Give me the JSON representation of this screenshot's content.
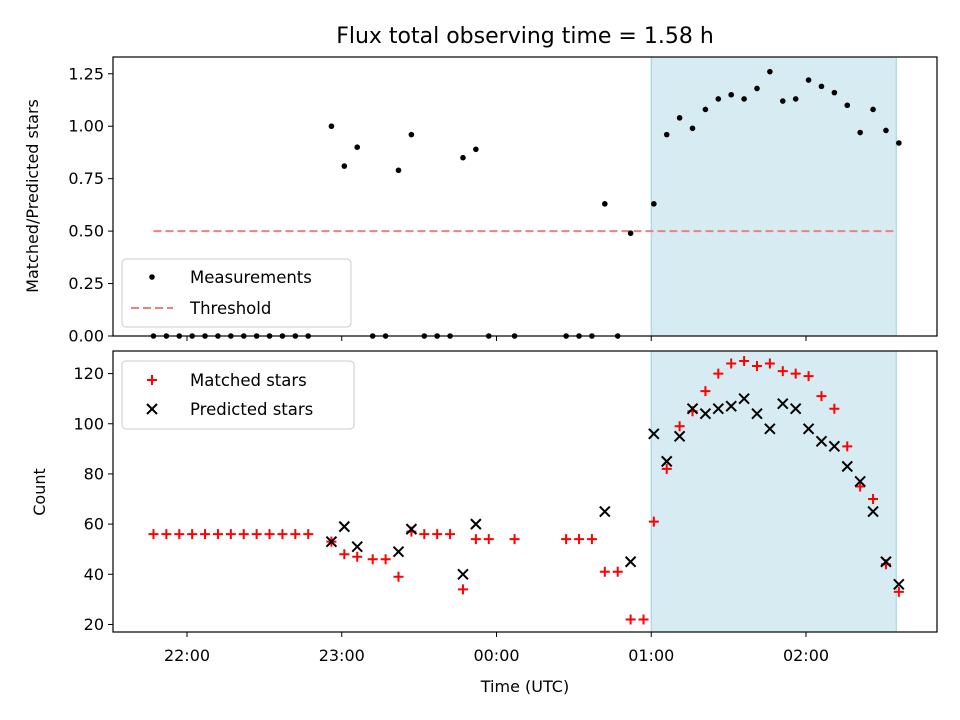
{
  "chart_data": [
    {
      "panel": "top",
      "type": "scatter",
      "title": "Flux total observing time = 1.58 h",
      "ylabel": "Matched/Predicted stars",
      "ylim": [
        0,
        1.33
      ],
      "yticks": [
        0.0,
        0.25,
        0.5,
        0.75,
        1.0,
        1.25
      ],
      "ytick_labels": [
        "0.00",
        "0.25",
        "0.50",
        "0.75",
        "1.00",
        "1.25"
      ],
      "legend": {
        "placement": "lower-left",
        "entries": [
          "Measurements",
          "Threshold"
        ]
      },
      "highlight_span": [
        "01:00",
        "02:35"
      ],
      "threshold": {
        "name": "Threshold",
        "value": 0.5,
        "x_start": "21:47",
        "x_end": "02:35",
        "color": "#f08080"
      },
      "series": [
        {
          "name": "Measurements",
          "color": "#000000",
          "points": [
            [
              "21:47",
              0.0
            ],
            [
              "21:52",
              0.0
            ],
            [
              "21:57",
              0.0
            ],
            [
              "22:02",
              0.0
            ],
            [
              "22:07",
              0.0
            ],
            [
              "22:12",
              0.0
            ],
            [
              "22:17",
              0.0
            ],
            [
              "22:22",
              0.0
            ],
            [
              "22:27",
              0.0
            ],
            [
              "22:32",
              0.0
            ],
            [
              "22:37",
              0.0
            ],
            [
              "22:42",
              0.0
            ],
            [
              "22:47",
              0.0
            ],
            [
              "22:56",
              1.0
            ],
            [
              "23:01",
              0.81
            ],
            [
              "23:06",
              0.9
            ],
            [
              "23:12",
              0.0
            ],
            [
              "23:17",
              0.0
            ],
            [
              "23:22",
              0.79
            ],
            [
              "23:27",
              0.96
            ],
            [
              "23:32",
              0.0
            ],
            [
              "23:37",
              0.0
            ],
            [
              "23:42",
              0.0
            ],
            [
              "23:47",
              0.85
            ],
            [
              "23:52",
              0.89
            ],
            [
              "23:57",
              0.0
            ],
            [
              "00:07",
              0.0
            ],
            [
              "00:27",
              0.0
            ],
            [
              "00:32",
              0.0
            ],
            [
              "00:37",
              0.0
            ],
            [
              "00:42",
              0.63
            ],
            [
              "00:47",
              0.0
            ],
            [
              "00:52",
              0.49
            ],
            [
              "01:01",
              0.63
            ],
            [
              "01:06",
              0.96
            ],
            [
              "01:11",
              1.04
            ],
            [
              "01:16",
              0.99
            ],
            [
              "01:21",
              1.08
            ],
            [
              "01:26",
              1.13
            ],
            [
              "01:31",
              1.15
            ],
            [
              "01:36",
              1.13
            ],
            [
              "01:41",
              1.18
            ],
            [
              "01:46",
              1.26
            ],
            [
              "01:51",
              1.12
            ],
            [
              "01:56",
              1.13
            ],
            [
              "02:01",
              1.22
            ],
            [
              "02:06",
              1.19
            ],
            [
              "02:11",
              1.16
            ],
            [
              "02:16",
              1.1
            ],
            [
              "02:21",
              0.97
            ],
            [
              "02:26",
              1.08
            ],
            [
              "02:31",
              0.98
            ],
            [
              "02:36",
              0.92
            ]
          ]
        }
      ]
    },
    {
      "panel": "bottom",
      "type": "scatter",
      "xlabel": "Time (UTC)",
      "ylabel": "Count",
      "ylim": [
        17,
        129
      ],
      "yticks": [
        20,
        40,
        60,
        80,
        100,
        120
      ],
      "ytick_labels": [
        "20",
        "40",
        "60",
        "80",
        "100",
        "120"
      ],
      "xticks": [
        "22:00",
        "23:00",
        "00:00",
        "01:00",
        "02:00"
      ],
      "legend": {
        "placement": "upper-left",
        "entries": [
          "Matched stars",
          "Predicted stars"
        ]
      },
      "highlight_span": [
        "01:00",
        "02:35"
      ],
      "series": [
        {
          "name": "Matched stars",
          "marker": "plus",
          "color": "#ff0000",
          "points": [
            [
              "21:47",
              56
            ],
            [
              "21:52",
              56
            ],
            [
              "21:57",
              56
            ],
            [
              "22:02",
              56
            ],
            [
              "22:07",
              56
            ],
            [
              "22:12",
              56
            ],
            [
              "22:17",
              56
            ],
            [
              "22:22",
              56
            ],
            [
              "22:27",
              56
            ],
            [
              "22:32",
              56
            ],
            [
              "22:37",
              56
            ],
            [
              "22:42",
              56
            ],
            [
              "22:47",
              56
            ],
            [
              "22:56",
              53
            ],
            [
              "23:01",
              48
            ],
            [
              "23:06",
              47
            ],
            [
              "23:12",
              46
            ],
            [
              "23:17",
              46
            ],
            [
              "23:22",
              39
            ],
            [
              "23:27",
              57
            ],
            [
              "23:32",
              56
            ],
            [
              "23:37",
              56
            ],
            [
              "23:42",
              56
            ],
            [
              "23:47",
              34
            ],
            [
              "23:52",
              54
            ],
            [
              "23:57",
              54
            ],
            [
              "00:07",
              54
            ],
            [
              "00:27",
              54
            ],
            [
              "00:32",
              54
            ],
            [
              "00:37",
              54
            ],
            [
              "00:42",
              41
            ],
            [
              "00:47",
              41
            ],
            [
              "00:52",
              22
            ],
            [
              "00:57",
              22
            ],
            [
              "01:01",
              61
            ],
            [
              "01:06",
              82
            ],
            [
              "01:11",
              99
            ],
            [
              "01:16",
              105
            ],
            [
              "01:21",
              113
            ],
            [
              "01:26",
              120
            ],
            [
              "01:31",
              124
            ],
            [
              "01:36",
              125
            ],
            [
              "01:41",
              123
            ],
            [
              "01:46",
              124
            ],
            [
              "01:51",
              121
            ],
            [
              "01:56",
              120
            ],
            [
              "02:01",
              119
            ],
            [
              "02:06",
              111
            ],
            [
              "02:11",
              106
            ],
            [
              "02:16",
              91
            ],
            [
              "02:21",
              75
            ],
            [
              "02:26",
              70
            ],
            [
              "02:31",
              44
            ],
            [
              "02:36",
              33
            ]
          ]
        },
        {
          "name": "Predicted stars",
          "marker": "x",
          "color": "#000000",
          "points": [
            [
              "22:56",
              53
            ],
            [
              "23:01",
              59
            ],
            [
              "23:06",
              51
            ],
            [
              "23:22",
              49
            ],
            [
              "23:27",
              58
            ],
            [
              "23:47",
              40
            ],
            [
              "23:52",
              60
            ],
            [
              "00:42",
              65
            ],
            [
              "00:52",
              45
            ],
            [
              "01:01",
              96
            ],
            [
              "01:06",
              85
            ],
            [
              "01:11",
              95
            ],
            [
              "01:16",
              106
            ],
            [
              "01:21",
              104
            ],
            [
              "01:26",
              106
            ],
            [
              "01:31",
              107
            ],
            [
              "01:36",
              110
            ],
            [
              "01:41",
              104
            ],
            [
              "01:46",
              98
            ],
            [
              "01:51",
              108
            ],
            [
              "01:56",
              106
            ],
            [
              "02:01",
              98
            ],
            [
              "02:06",
              93
            ],
            [
              "02:11",
              91
            ],
            [
              "02:16",
              83
            ],
            [
              "02:21",
              77
            ],
            [
              "02:26",
              65
            ],
            [
              "02:31",
              45
            ],
            [
              "02:36",
              36
            ]
          ]
        }
      ]
    }
  ]
}
